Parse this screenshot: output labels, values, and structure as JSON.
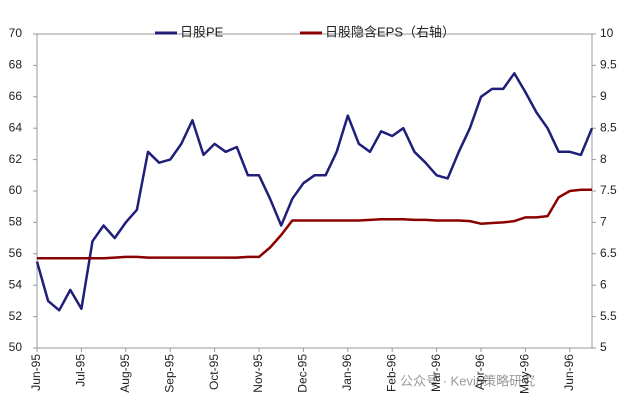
{
  "chart_data": {
    "type": "line",
    "categories": [
      "Jun-95",
      null,
      null,
      null,
      "Jul-95",
      null,
      null,
      null,
      "Aug-95",
      null,
      null,
      null,
      "Sep-95",
      null,
      null,
      null,
      "Oct-95",
      null,
      null,
      null,
      "Nov-95",
      null,
      null,
      null,
      "Dec-95",
      null,
      null,
      null,
      "Jan-96",
      null,
      null,
      null,
      "Feb-96",
      null,
      null,
      null,
      "Mar-96",
      null,
      null,
      null,
      "Apr-96",
      null,
      null,
      null,
      "May-96",
      null,
      null,
      null,
      "Jun-96",
      null,
      null
    ],
    "series": [
      {
        "name": "日股PE",
        "color": "#1f1f7a",
        "axis": "y",
        "values": [
          55.5,
          53,
          52.4,
          53.7,
          52.5,
          56.8,
          57.8,
          57,
          58,
          58.8,
          62.5,
          61.8,
          62,
          63,
          64.5,
          62.3,
          63,
          62.5,
          62.8,
          61,
          61,
          59.5,
          57.8,
          59.5,
          60.5,
          61,
          61,
          62.5,
          64.8,
          63,
          62.5,
          63.8,
          63.5,
          64,
          62.5,
          61.8,
          61,
          60.8,
          62.5,
          64,
          66,
          66.5,
          66.5,
          67.5,
          66.3,
          65,
          64,
          62.5,
          62.5,
          62.3,
          64
        ]
      },
      {
        "name": "日股隐含EPS（右轴）",
        "color": "#8b0000",
        "axis": "y2",
        "values": [
          6.43,
          6.43,
          6.43,
          6.43,
          6.43,
          6.43,
          6.43,
          6.44,
          6.45,
          6.45,
          6.44,
          6.44,
          6.44,
          6.44,
          6.44,
          6.44,
          6.44,
          6.44,
          6.44,
          6.45,
          6.45,
          6.6,
          6.8,
          7.03,
          7.03,
          7.03,
          7.03,
          7.03,
          7.03,
          7.03,
          7.04,
          7.05,
          7.05,
          7.05,
          7.04,
          7.04,
          7.03,
          7.03,
          7.03,
          7.02,
          6.98,
          6.99,
          7.0,
          7.02,
          7.08,
          7.08,
          7.1,
          7.4,
          7.5,
          7.52,
          7.52
        ]
      }
    ],
    "ylim": [
      50,
      70
    ],
    "yticks": [
      50,
      52,
      54,
      56,
      58,
      60,
      62,
      64,
      66,
      68,
      70
    ],
    "y2lim": [
      5,
      10
    ],
    "y2ticks": [
      5,
      5.5,
      6,
      6.5,
      7,
      7.5,
      8,
      8.5,
      9,
      9.5,
      10
    ],
    "legend": "top",
    "watermark": "公众号 · Kevin策略研究"
  }
}
